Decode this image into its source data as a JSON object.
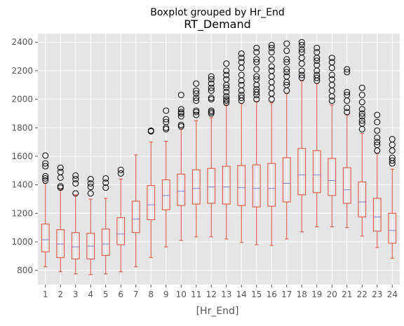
{
  "chart_data": {
    "type": "boxplot",
    "suptitle": "Boxplot grouped by Hr_End",
    "title": "RT_Demand",
    "xlabel": "[Hr_End]",
    "ylabel": "",
    "categories": [
      "1",
      "2",
      "3",
      "4",
      "5",
      "6",
      "7",
      "8",
      "9",
      "10",
      "11",
      "12",
      "13",
      "14",
      "15",
      "16",
      "17",
      "18",
      "19",
      "20",
      "21",
      "22",
      "23",
      "24"
    ],
    "ylim": [
      700,
      2460
    ],
    "yticks": [
      800,
      1000,
      1200,
      1400,
      1600,
      1800,
      2000,
      2200,
      2400
    ],
    "grid": true,
    "colors": {
      "box": "#E24A33",
      "median": "#8080D0",
      "flier": "#000000",
      "background": "#E5E5E5",
      "grid": "#FFFFFF"
    },
    "boxes": [
      {
        "whislo": 825,
        "q1": 930,
        "med": 1015,
        "q3": 1125,
        "whishi": 1410,
        "fliers": [
          1430,
          1445,
          1460,
          1530,
          1550,
          1605
        ]
      },
      {
        "whislo": 790,
        "q1": 890,
        "med": 985,
        "q3": 1085,
        "whishi": 1370,
        "fliers": [
          1380,
          1390,
          1450,
          1490,
          1520
        ]
      },
      {
        "whislo": 775,
        "q1": 880,
        "med": 965,
        "q3": 1065,
        "whishi": 1330,
        "fliers": [
          1340,
          1410,
          1440,
          1465
        ]
      },
      {
        "whislo": 770,
        "q1": 880,
        "med": 970,
        "q3": 1060,
        "whishi": 1300,
        "fliers": [
          1340,
          1385,
          1410,
          1440
        ]
      },
      {
        "whislo": 775,
        "q1": 905,
        "med": 985,
        "q3": 1090,
        "whishi": 1305,
        "fliers": [
          1380,
          1415,
          1445
        ]
      },
      {
        "whislo": 790,
        "q1": 980,
        "med": 1055,
        "q3": 1170,
        "whishi": 1440,
        "fliers": [
          1480,
          1505
        ]
      },
      {
        "whislo": 825,
        "q1": 1065,
        "med": 1160,
        "q3": 1285,
        "whishi": 1610,
        "fliers": []
      },
      {
        "whislo": 890,
        "q1": 1155,
        "med": 1260,
        "q3": 1395,
        "whishi": 1700,
        "fliers": [
          1775,
          1780
        ]
      },
      {
        "whislo": 965,
        "q1": 1225,
        "med": 1325,
        "q3": 1435,
        "whishi": 1705,
        "fliers": [
          1790,
          1800,
          1840,
          1860,
          1920
        ]
      },
      {
        "whislo": 1010,
        "q1": 1255,
        "med": 1355,
        "q3": 1475,
        "whishi": 1790,
        "fliers": [
          1810,
          1820,
          1880,
          1900,
          1910,
          1930,
          2030
        ]
      },
      {
        "whislo": 1035,
        "q1": 1265,
        "med": 1375,
        "q3": 1505,
        "whishi": 1850,
        "fliers": [
          1890,
          1910,
          1920,
          1990,
          2010,
          2040,
          2060,
          2110
        ]
      },
      {
        "whislo": 1035,
        "q1": 1270,
        "med": 1385,
        "q3": 1515,
        "whishi": 1870,
        "fliers": [
          1900,
          1910,
          1920,
          2000,
          2010,
          2060,
          2080,
          2110,
          2140,
          2160
        ]
      },
      {
        "whislo": 1020,
        "q1": 1265,
        "med": 1385,
        "q3": 1530,
        "whishi": 1960,
        "fliers": [
          1975,
          1990,
          2000,
          2020,
          2050,
          2080,
          2100,
          2140,
          2170,
          2200,
          2250
        ]
      },
      {
        "whislo": 995,
        "q1": 1255,
        "med": 1380,
        "q3": 1535,
        "whishi": 1970,
        "fliers": [
          1990,
          2010,
          2030,
          2060,
          2100,
          2130,
          2170,
          2220,
          2260,
          2290,
          2320
        ]
      },
      {
        "whislo": 980,
        "q1": 1245,
        "med": 1375,
        "q3": 1540,
        "whishi": 1985,
        "fliers": [
          2000,
          2030,
          2050,
          2070,
          2100,
          2140,
          2160,
          2210,
          2260,
          2280,
          2330,
          2360
        ]
      },
      {
        "whislo": 975,
        "q1": 1250,
        "med": 1375,
        "q3": 1550,
        "whishi": 1975,
        "fliers": [
          2000,
          2040,
          2080,
          2120,
          2160,
          2200,
          2230,
          2280,
          2330,
          2360,
          2380
        ]
      },
      {
        "whislo": 1020,
        "q1": 1280,
        "med": 1410,
        "q3": 1590,
        "whishi": 2040,
        "fliers": [
          2060,
          2100,
          2120,
          2160,
          2190,
          2210,
          2260,
          2280,
          2340,
          2390
        ]
      },
      {
        "whislo": 1070,
        "q1": 1330,
        "med": 1470,
        "q3": 1655,
        "whishi": 2130,
        "fliers": [
          2150,
          2170,
          2200,
          2250,
          2290,
          2330,
          2350,
          2380,
          2400
        ]
      },
      {
        "whislo": 1105,
        "q1": 1345,
        "med": 1470,
        "q3": 1640,
        "whishi": 2110,
        "fliers": [
          2130,
          2150,
          2170,
          2200,
          2240,
          2270,
          2290,
          2330,
          2360
        ]
      },
      {
        "whislo": 1105,
        "q1": 1325,
        "med": 1430,
        "q3": 1585,
        "whishi": 1960,
        "fliers": [
          1990,
          2020,
          2060,
          2100,
          2140,
          2170,
          2220,
          2260,
          2290
        ]
      },
      {
        "whislo": 1100,
        "q1": 1270,
        "med": 1365,
        "q3": 1520,
        "whishi": 1890,
        "fliers": [
          1910,
          1940,
          1990,
          2030,
          2050,
          2190,
          2210
        ]
      },
      {
        "whislo": 1040,
        "q1": 1175,
        "med": 1280,
        "q3": 1420,
        "whishi": 1760,
        "fliers": [
          1790,
          1830,
          1850,
          1880,
          1900,
          1930,
          1980,
          2030,
          2080
        ]
      },
      {
        "whislo": 960,
        "q1": 1075,
        "med": 1175,
        "q3": 1305,
        "whishi": 1620,
        "fliers": [
          1640,
          1680,
          1700,
          1730,
          1780,
          1840,
          1890
        ]
      },
      {
        "whislo": 885,
        "q1": 990,
        "med": 1080,
        "q3": 1200,
        "whishi": 1510,
        "fliers": [
          1550,
          1570,
          1590,
          1640,
          1680,
          1720
        ]
      }
    ]
  }
}
